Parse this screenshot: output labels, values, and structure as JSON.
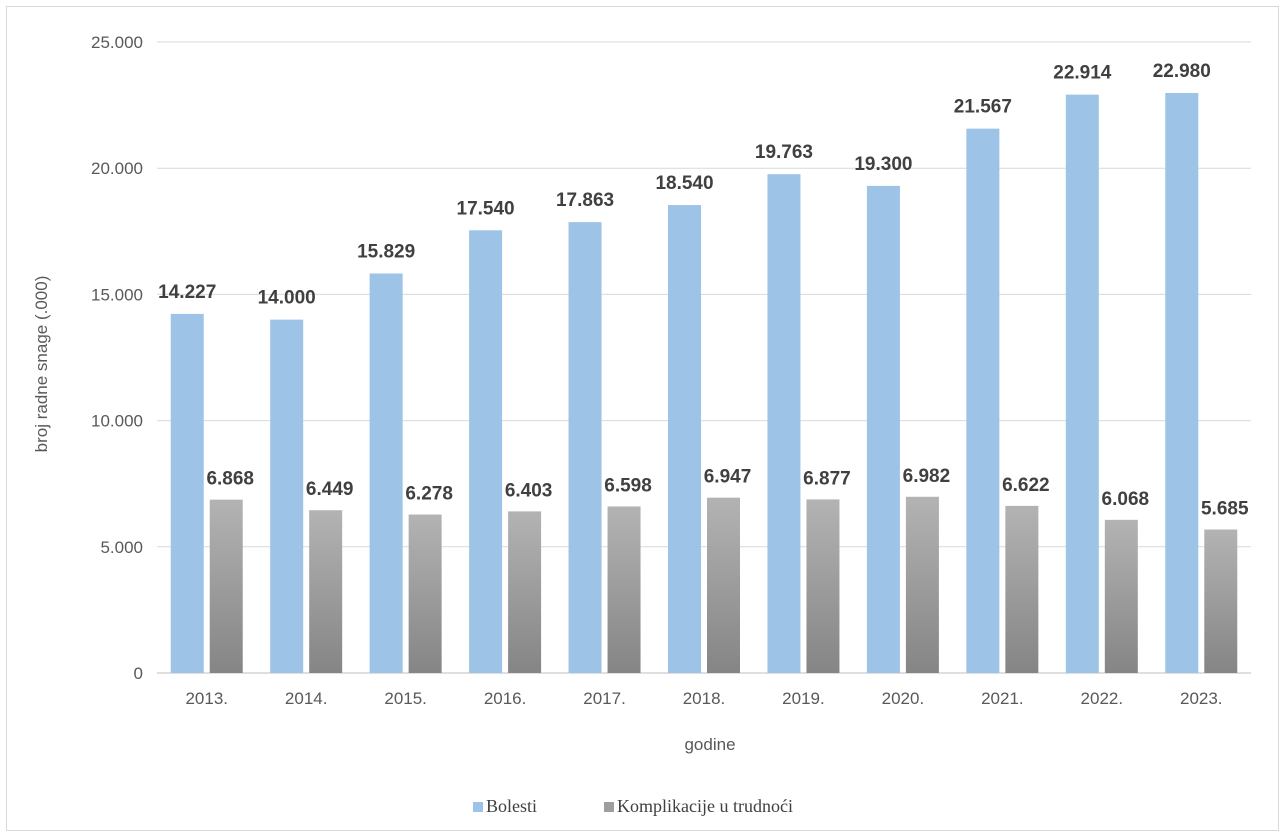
{
  "chart_data": {
    "type": "bar",
    "title": "",
    "xlabel": "godine",
    "ylabel": "broj radne snage (.000)",
    "ylim": [
      0,
      25000
    ],
    "y_ticks": [
      {
        "value": 0,
        "label": "0"
      },
      {
        "value": 5000,
        "label": "5.000"
      },
      {
        "value": 10000,
        "label": "10.000"
      },
      {
        "value": 15000,
        "label": "15.000"
      },
      {
        "value": 20000,
        "label": "20.000"
      },
      {
        "value": 25000,
        "label": "25.000"
      }
    ],
    "grid": true,
    "legend_position": "bottom",
    "categories": [
      "2013.",
      "2014.",
      "2015.",
      "2016.",
      "2017.",
      "2018.",
      "2019.",
      "2020.",
      "2021.",
      "2022.",
      "2023."
    ],
    "series": [
      {
        "name": "Bolesti",
        "color": "#9dc3e6",
        "values": [
          14227,
          14000,
          15829,
          17540,
          17863,
          18540,
          19763,
          19300,
          21567,
          22914,
          22980
        ],
        "labels": [
          "14.227",
          "14.000",
          "15.829",
          "17.540",
          "17.863",
          "18.540",
          "19.763",
          "19.300",
          "21.567",
          "22.914",
          "22.980"
        ]
      },
      {
        "name": "Komplikacije u trudnoći",
        "color": "#9e9e9e",
        "values": [
          6868,
          6449,
          6278,
          6403,
          6598,
          6947,
          6877,
          6982,
          6622,
          6068,
          5685
        ],
        "labels": [
          "6.868",
          "6.449",
          "6.278",
          "6.403",
          "6.598",
          "6.947",
          "6.877",
          "6.982",
          "6.622",
          "6.068",
          "5.685"
        ]
      }
    ]
  }
}
